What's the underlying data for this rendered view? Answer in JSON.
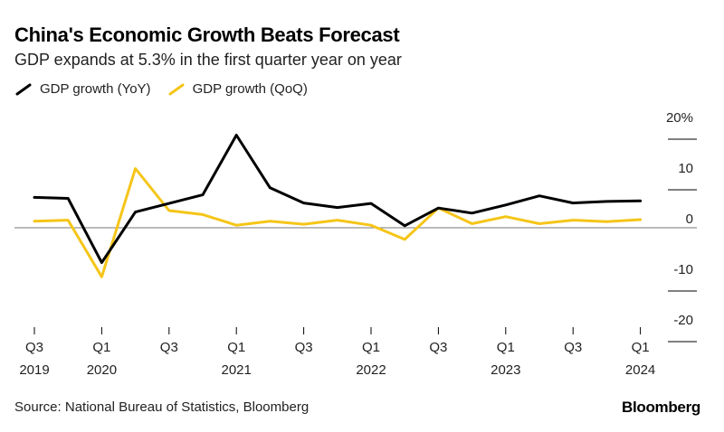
{
  "chart_data": {
    "type": "line",
    "title": "China's Economic Growth Beats Forecast",
    "subtitle": "GDP expands at 5.3% in the first quarter year on year",
    "x": [
      "2019-Q3",
      "2019-Q4",
      "2020-Q1",
      "2020-Q2",
      "2020-Q3",
      "2020-Q4",
      "2021-Q1",
      "2021-Q2",
      "2021-Q3",
      "2021-Q4",
      "2022-Q1",
      "2022-Q2",
      "2022-Q3",
      "2022-Q4",
      "2023-Q1",
      "2023-Q2",
      "2023-Q3",
      "2023-Q4",
      "2024-Q1"
    ],
    "series": [
      {
        "name": "GDP growth (YoY)",
        "color": "#000000",
        "values": [
          6.0,
          5.8,
          -6.9,
          3.1,
          4.8,
          6.5,
          18.3,
          7.9,
          4.9,
          4.0,
          4.8,
          0.4,
          3.9,
          2.9,
          4.5,
          6.3,
          4.9,
          5.2,
          5.3
        ]
      },
      {
        "name": "GDP growth (QoQ)",
        "color": "#f5c518",
        "values": [
          1.3,
          1.5,
          -9.7,
          11.7,
          3.4,
          2.6,
          0.5,
          1.3,
          0.7,
          1.5,
          0.5,
          -2.3,
          3.9,
          0.8,
          2.2,
          0.8,
          1.5,
          1.2,
          1.6
        ]
      }
    ],
    "x_ticks": [
      {
        "at": "2019-Q3",
        "quarter": "Q3",
        "year": "2019"
      },
      {
        "at": "2020-Q1",
        "quarter": "Q1",
        "year": "2020"
      },
      {
        "at": "2020-Q3",
        "quarter": "Q3",
        "year": ""
      },
      {
        "at": "2021-Q1",
        "quarter": "Q1",
        "year": "2021"
      },
      {
        "at": "2021-Q3",
        "quarter": "Q3",
        "year": ""
      },
      {
        "at": "2022-Q1",
        "quarter": "Q1",
        "year": "2022"
      },
      {
        "at": "2022-Q3",
        "quarter": "Q3",
        "year": ""
      },
      {
        "at": "2023-Q1",
        "quarter": "Q1",
        "year": "2023"
      },
      {
        "at": "2023-Q3",
        "quarter": "Q3",
        "year": ""
      },
      {
        "at": "2024-Q1",
        "quarter": "Q1",
        "year": "2024"
      }
    ],
    "y_ticks": [
      {
        "value": 20,
        "label": "20%"
      },
      {
        "value": 10,
        "label": "10"
      },
      {
        "value": 0,
        "label": "0"
      },
      {
        "value": -10,
        "label": "-10"
      },
      {
        "value": -20,
        "label": "-20"
      }
    ],
    "ylim": [
      -20,
      20
    ],
    "zero_line": true,
    "legend_position": "top-left",
    "source": "Source: National Bureau of Statistics, Bloomberg",
    "brand": "Bloomberg"
  }
}
